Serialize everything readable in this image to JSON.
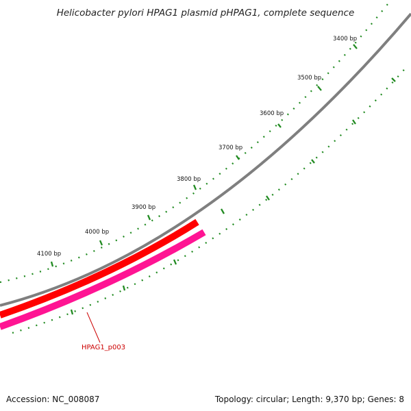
{
  "title": "Helicobacter pylori HPAG1 plasmid pHPAG1, complete sequence",
  "accession": "Accession: NC_008087",
  "summary": "Topology: circular; Length: 9,370 bp; Genes: 8",
  "tick_labels": [
    "3400 bp",
    "3500 bp",
    "3600 bp",
    "3700 bp",
    "3800 bp",
    "3900 bp",
    "4000 bp",
    "4100 bp"
  ],
  "gene_label": "HPAG1_p003",
  "colors": {
    "backbone": "#7f7f7f",
    "gene_forward": "#ff0000",
    "gene_reverse": "#ff1493",
    "ticks": "#228b22",
    "label": "#cc0000"
  }
}
